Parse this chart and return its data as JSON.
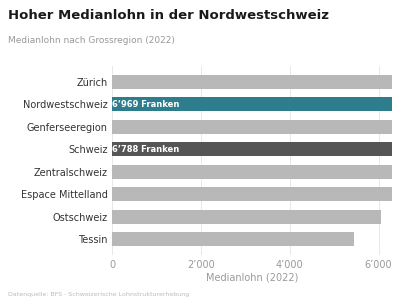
{
  "title": "Hoher Medianlohn in der Nordwestschweiz",
  "subtitle": "Medianlohn nach Grossregion (2022)",
  "xlabel": "Medianlohn (2022)",
  "footnote": "Datenquelle: BFS - Schweizerische Lohnstrukturerhebung",
  "categories": [
    "Tessin",
    "Ostschweiz",
    "Espace Mittelland",
    "Zentralschweiz",
    "Schweiz",
    "Genferseeregion",
    "Nordwestschweiz",
    "Zürich"
  ],
  "values": [
    5450,
    6050,
    6600,
    6680,
    6788,
    6820,
    6969,
    7000
  ],
  "bar_colors": [
    "#b8b8b8",
    "#b8b8b8",
    "#b8b8b8",
    "#b8b8b8",
    "#555555",
    "#b8b8b8",
    "#2e7d8c",
    "#b8b8b8"
  ],
  "bar_labels": [
    "",
    "",
    "",
    "",
    "6’788 Franken",
    "",
    "6’969 Franken",
    ""
  ],
  "xlim": [
    0,
    6300
  ],
  "xticks": [
    0,
    2000,
    4000,
    6000
  ],
  "xticklabels": [
    "0",
    "2’000",
    "4’000",
    "6’000"
  ],
  "background_color": "#ffffff",
  "title_fontsize": 9.5,
  "subtitle_fontsize": 6.5,
  "ytick_fontsize": 7,
  "xtick_fontsize": 7,
  "bar_height": 0.62
}
